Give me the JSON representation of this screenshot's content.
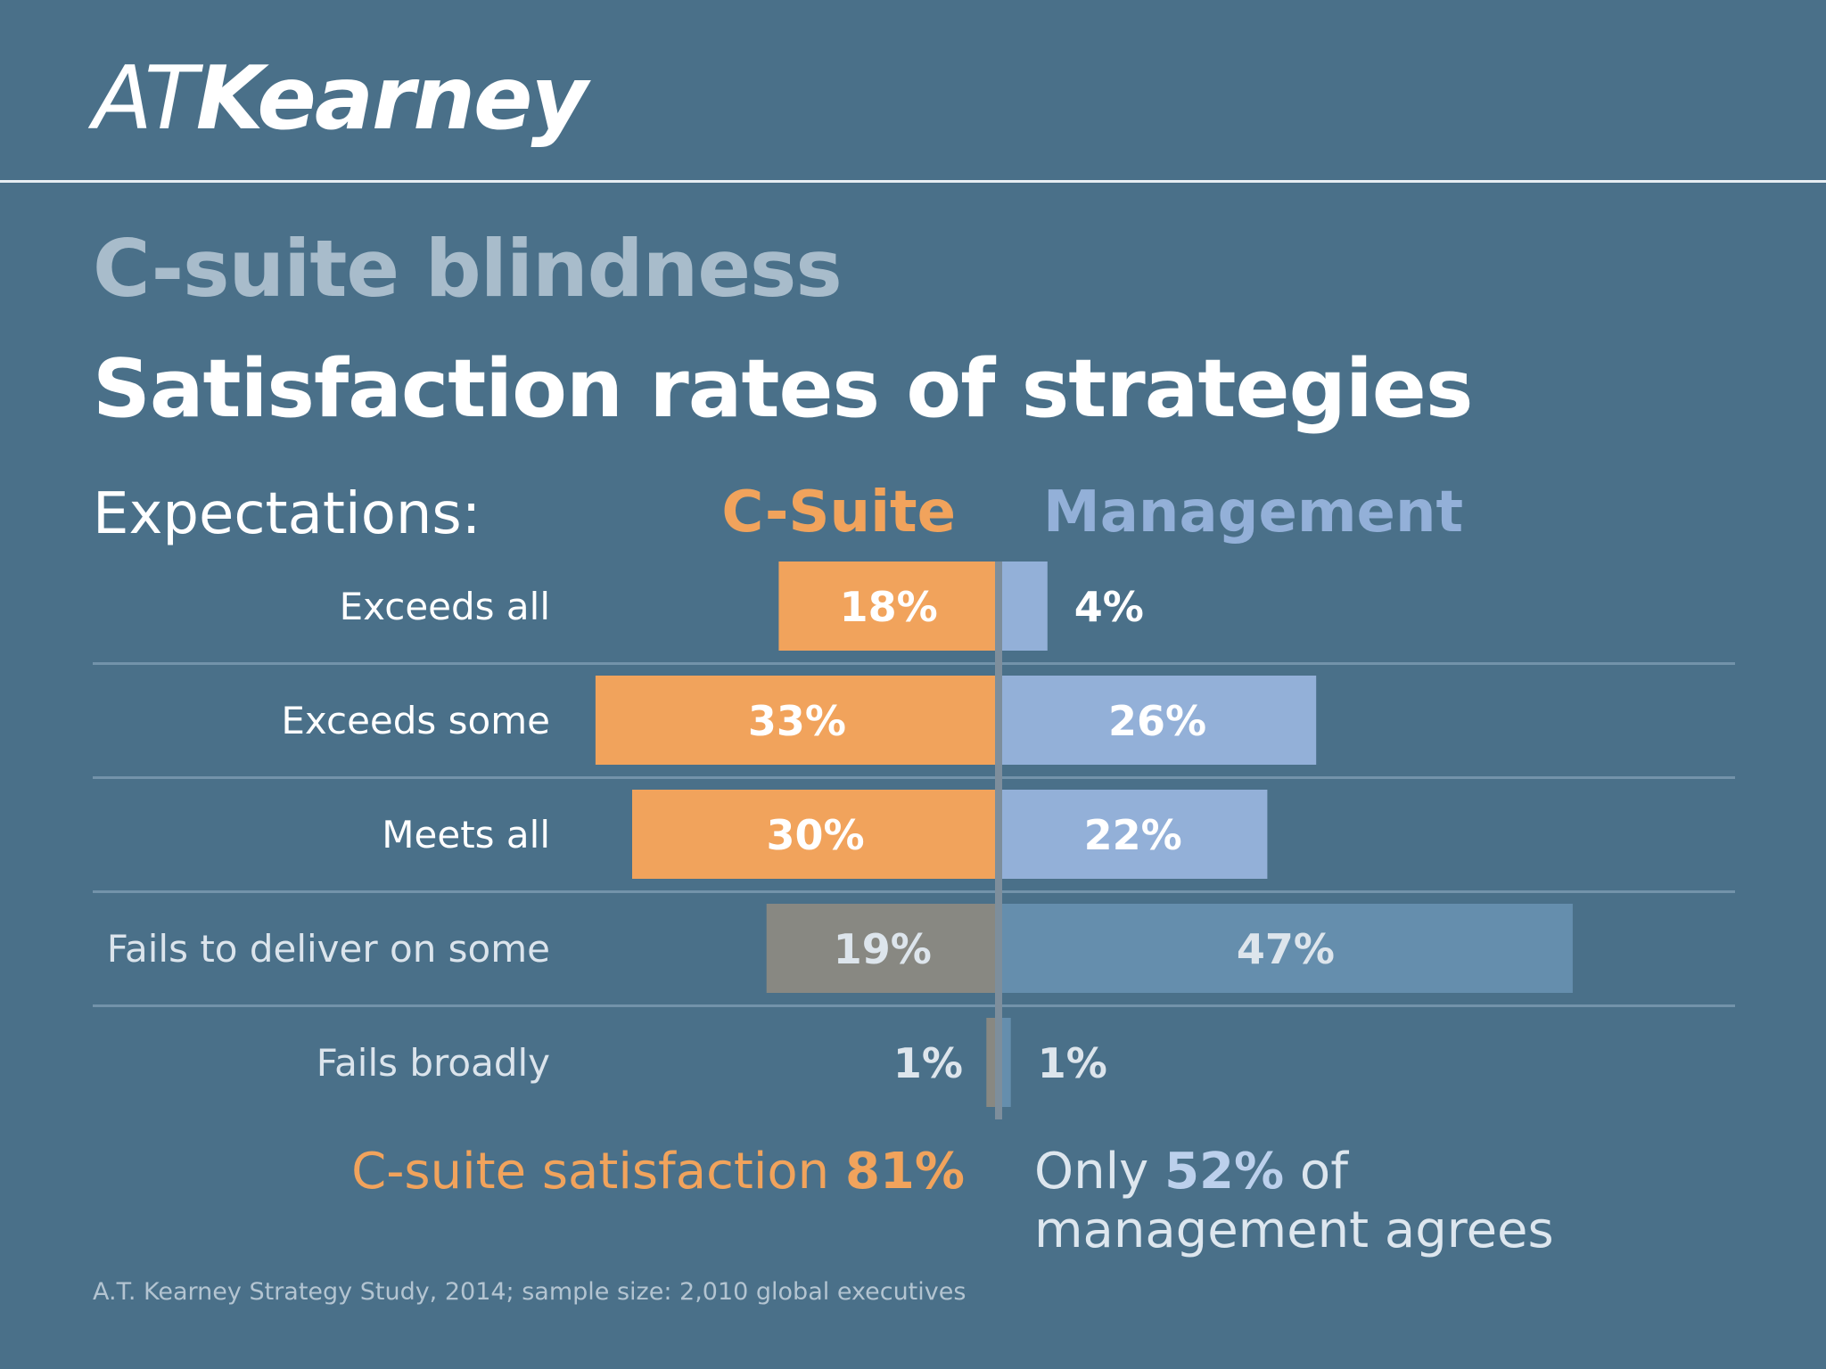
{
  "logo": {
    "part1": "AT",
    "part2": "Kearney"
  },
  "kicker": "C-suite blindness",
  "title": "Satisfaction rates of strategies",
  "expectations_label": "Expectations:",
  "colors": {
    "background": "#4a7089",
    "csuite": "#f1a35c",
    "management": "#93b0d8",
    "csuite_fail": "#888882",
    "management_fail": "#658ead"
  },
  "chart_data": {
    "type": "bar",
    "orientation": "diverging-horizontal",
    "categories": [
      "Exceeds all",
      "Exceeds some",
      "Meets all",
      "Fails to deliver on some",
      "Fails broadly"
    ],
    "series": [
      {
        "name": "C-Suite",
        "values": [
          18,
          33,
          30,
          19,
          1
        ],
        "labels": [
          "18%",
          "33%",
          "30%",
          "19%",
          "1%"
        ]
      },
      {
        "name": "Management",
        "values": [
          4,
          26,
          22,
          47,
          1
        ],
        "labels": [
          "4%",
          "26%",
          "22%",
          "47%",
          "1%"
        ]
      }
    ],
    "unit": "%"
  },
  "summary": {
    "csuite_prefix": "C-suite satisfaction ",
    "csuite_value": "81%",
    "management_prefix": "Only ",
    "management_value": "52%",
    "management_suffix": " of management agrees"
  },
  "source": "A.T. Kearney Strategy Study, 2014; sample size: 2,010 global executives"
}
